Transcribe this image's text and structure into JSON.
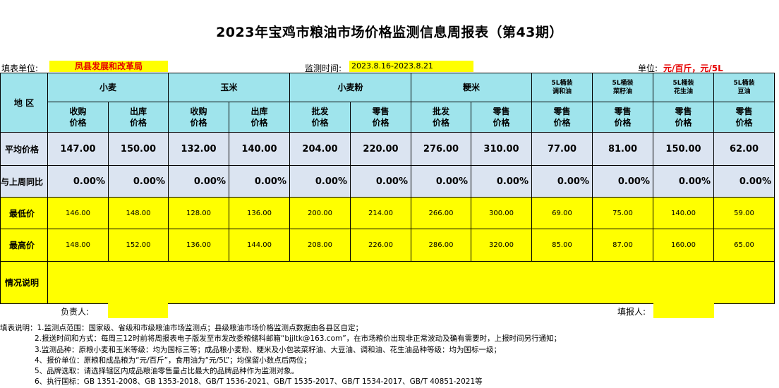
{
  "title": "2023年宝鸡市粮油市场价格监测信息周报表（第43期）",
  "info": {
    "unit_label": "填表单位:",
    "unit_value": "凤县发展和改革局",
    "time_label": "监测时间:",
    "time_value": "2023.8.16-2023.8.21",
    "price_unit_label": "单位:",
    "price_unit_value": "元/百斤，元/5L"
  },
  "table": {
    "region_label": "地  区",
    "groups": [
      {
        "label": "小麦"
      },
      {
        "label": "玉米"
      },
      {
        "label": "小麦粉"
      },
      {
        "label": "粳米"
      }
    ],
    "oils": [
      {
        "line1": "5L桶装",
        "line2": "调和油"
      },
      {
        "line1": "5L桶装",
        "line2": "菜籽油"
      },
      {
        "line1": "5L桶装",
        "line2": "花生油"
      },
      {
        "line1": "5L桶装",
        "line2": "豆油"
      }
    ],
    "subheaders": [
      {
        "line1": "收购",
        "line2": "价格"
      },
      {
        "line1": "出库",
        "line2": "价格"
      },
      {
        "line1": "收购",
        "line2": "价格"
      },
      {
        "line1": "出库",
        "line2": "价格"
      },
      {
        "line1": "批发",
        "line2": "价格"
      },
      {
        "line1": "零售",
        "line2": "价格"
      },
      {
        "line1": "批发",
        "line2": "价格"
      },
      {
        "line1": "零售",
        "line2": "价格"
      },
      {
        "line1": "零售",
        "line2": "价格"
      },
      {
        "line1": "零售",
        "line2": "价格"
      },
      {
        "line1": "零售",
        "line2": "价格"
      },
      {
        "line1": "零售",
        "line2": "价格"
      }
    ],
    "rows": {
      "avg": {
        "label": "平均价格",
        "values": [
          "147.00",
          "150.00",
          "132.00",
          "140.00",
          "204.00",
          "220.00",
          "276.00",
          "310.00",
          "77.00",
          "81.00",
          "150.00",
          "62.00"
        ]
      },
      "wow": {
        "label": "与上周同比",
        "values": [
          "0.00%",
          "0.00%",
          "0.00%",
          "0.00%",
          "0.00%",
          "0.00%",
          "0.00%",
          "0.00%",
          "0.00%",
          "0.00%",
          "0.00%",
          "0.00%"
        ]
      },
      "min": {
        "label": "最低价",
        "values": [
          "146.00",
          "148.00",
          "128.00",
          "136.00",
          "200.00",
          "214.00",
          "266.00",
          "300.00",
          "69.00",
          "75.00",
          "140.00",
          "59.00"
        ]
      },
      "max": {
        "label": "最高价",
        "values": [
          "148.00",
          "152.00",
          "136.00",
          "144.00",
          "208.00",
          "226.00",
          "286.00",
          "320.00",
          "85.00",
          "87.00",
          "160.00",
          "65.00"
        ]
      },
      "situation": {
        "label": "情况说明",
        "value": ""
      }
    }
  },
  "footer": {
    "manager_label": "负责人:",
    "filler_label": "填报人:"
  },
  "notes": {
    "lead": "填表说明：",
    "items": [
      "1.监测点范围：国家级、省级和市级粮油市场监测点；县级粮油市场价格监测点数据由各县区自定；",
      "2.报送时间和方式：每周三12时前将周报表电子版发至市发改委粮储科邮箱“bjjltk@163.com”，在市场粮价出现非正常波动及确有需要时，上报时间另行通知；",
      "3.监测品种：原粮小麦和玉米等级：均为国标三等；成品粮小麦粉、粳米及小包装菜籽油、大豆油、调和油、花生油品种等级：均为国标一级；",
      "4、报价单位：原粮和成品粮为“元/百斤”，食用油为“元/5L”；均保留小数点后两位；",
      "5、品牌选取：请选择辖区内成品粮油零售量占比最大的品牌品种作为监测对象。",
      "6、执行国标：GB 1351-2008、GB 1353-2018、GB/T 1536-2021、GB/T 1535-2017、GB/T 1534-2017、GB/T 40851-2021等"
    ]
  }
}
